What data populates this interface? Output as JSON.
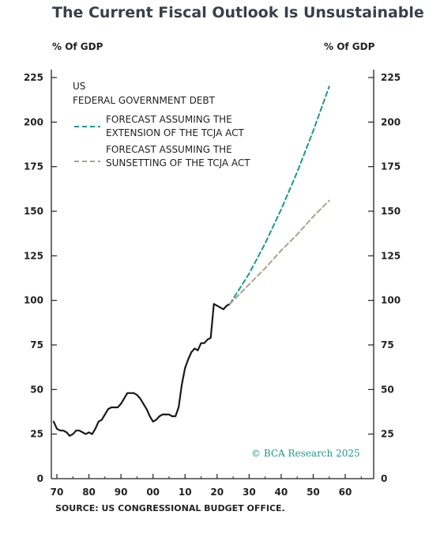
{
  "chart_data": {
    "type": "line",
    "title": "The Current Fiscal Outlook Is Unsustainable",
    "ylabel_left": "% Of GDP",
    "ylabel_right": "% Of GDP",
    "xlim": [
      1969,
      2068
    ],
    "ylim": [
      0,
      230
    ],
    "x_ticks": [
      1970,
      1980,
      1990,
      2000,
      2010,
      2020,
      2030,
      2040,
      2050,
      2060
    ],
    "x_tick_labels": [
      "70",
      "80",
      "90",
      "00",
      "10",
      "20",
      "30",
      "40",
      "50",
      "60"
    ],
    "y_ticks": [
      0,
      25,
      50,
      75,
      100,
      125,
      150,
      175,
      200,
      225
    ],
    "y_tick_labels": [
      "0",
      "25",
      "50",
      "75",
      "100",
      "125",
      "150",
      "175",
      "200",
      "225"
    ],
    "legend": {
      "group_title_1": "US",
      "group_title_2": "FEDERAL GOVERNMENT DEBT",
      "placement": "top-left"
    },
    "series": [
      {
        "style": "solid",
        "color": "#1a1a1a",
        "x": [
          1969,
          1970,
          1971,
          1972,
          1973,
          1974,
          1975,
          1976,
          1977,
          1978,
          1979,
          1980,
          1981,
          1982,
          1983,
          1984,
          1985,
          1986,
          1987,
          1988,
          1989,
          1990,
          1991,
          1992,
          1993,
          1994,
          1995,
          1996,
          1997,
          1998,
          1999,
          2000,
          2001,
          2002,
          2003,
          2004,
          2005,
          2006,
          2007,
          2008,
          2009,
          2010,
          2011,
          2012,
          2013,
          2014,
          2015,
          2016,
          2017,
          2018,
          2019,
          2020,
          2021,
          2022,
          2023,
          2024
        ],
        "values": [
          32,
          28,
          27,
          27,
          26,
          24,
          25,
          27,
          27,
          26,
          25,
          26,
          25,
          28,
          32,
          33,
          36,
          39,
          40,
          40,
          40,
          42,
          45,
          48,
          48,
          48,
          47,
          45,
          42,
          39,
          35,
          32,
          33,
          35,
          36,
          36,
          36,
          35,
          35,
          40,
          53,
          62,
          67,
          71,
          73,
          72,
          76,
          76,
          78,
          79,
          98,
          97,
          96,
          95,
          97,
          98
        ]
      },
      {
        "name": "FORECAST ASSUMING THE EXTENSION OF THE TCJA ACT",
        "style": "dashed",
        "color": "#1a9a88",
        "x": [
          2024,
          2030,
          2035,
          2040,
          2045,
          2050,
          2055
        ],
        "values": [
          98,
          115,
          132,
          151,
          172,
          195,
          220
        ]
      },
      {
        "name": "FORECAST ASSUMING THE SUNSETTING OF THE TCJA ACT",
        "style": "dashed",
        "color": "#b0a08c",
        "x": [
          2024,
          2030,
          2035,
          2040,
          2045,
          2050,
          2055
        ],
        "values": [
          98,
          109,
          118,
          128,
          137,
          147,
          156
        ]
      }
    ],
    "grid": false
  },
  "credit": "© BCA Research 2025",
  "source": "SOURCE: US CONGRESSIONAL BUDGET OFFICE."
}
